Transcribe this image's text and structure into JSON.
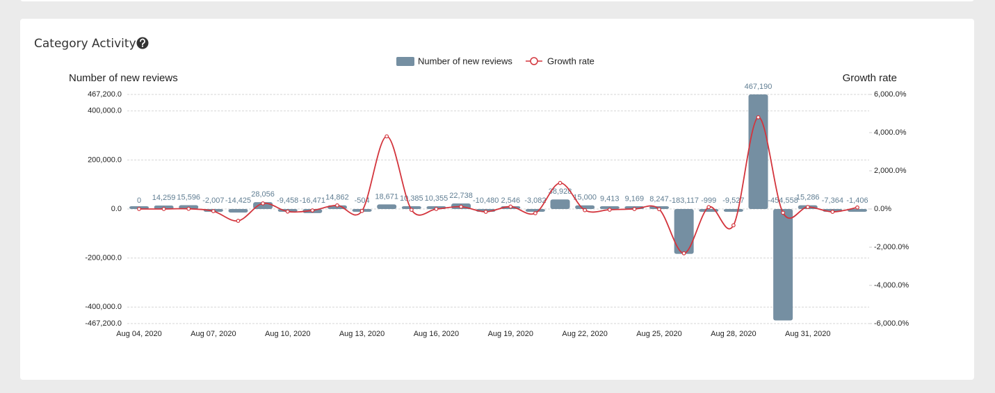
{
  "chart_data": {
    "type": "bar",
    "title": "Category Activity",
    "y_label": "Number of new reviews",
    "y2_label": "Growth rate",
    "legend": "top",
    "grid": true,
    "categories": [
      "Aug 04, 2020",
      null,
      null,
      "Aug 07, 2020",
      null,
      null,
      "Aug 10, 2020",
      null,
      null,
      "Aug 13, 2020",
      null,
      null,
      "Aug 16, 2020",
      null,
      null,
      "Aug 19, 2020",
      null,
      null,
      "Aug 22, 2020",
      null,
      null,
      "Aug 25, 2020",
      null,
      null,
      "Aug 28, 2020",
      null,
      null,
      "Aug 31, 2020",
      null,
      null
    ],
    "ylim": [
      -467200,
      467200
    ],
    "yticks": [
      {
        "value": -467200,
        "label": "-467,200.0"
      },
      {
        "value": -400000,
        "label": "-400,000.0"
      },
      {
        "value": -200000,
        "label": "-200,000.0"
      },
      {
        "value": 0,
        "label": "0.0"
      },
      {
        "value": 200000,
        "label": "200,000.0"
      },
      {
        "value": 400000,
        "label": "400,000.0"
      },
      {
        "value": 467200,
        "label": "467,200.0"
      }
    ],
    "y2lim": [
      -6000,
      6000
    ],
    "y2ticks": [
      {
        "value": -6000,
        "label": "-6,000.0%"
      },
      {
        "value": -4000,
        "label": "-4,000.0%"
      },
      {
        "value": -2000,
        "label": "-2,000.0%"
      },
      {
        "value": 0,
        "label": "0.0%"
      },
      {
        "value": 2000,
        "label": "2,000.0%"
      },
      {
        "value": 4000,
        "label": "4,000.0%"
      },
      {
        "value": 6000,
        "label": "6,000.0%"
      }
    ],
    "series": [
      {
        "name": "Number of new reviews",
        "type": "bar",
        "color": "#758fa2",
        "values": [
          0,
          14259,
          15596,
          -2007,
          -14425,
          28056,
          -9458,
          -16471,
          14862,
          -504,
          18671,
          10385,
          10355,
          22738,
          -10480,
          2546,
          -3082,
          38928,
          15000,
          9413,
          9169,
          8247,
          -183117,
          -999,
          -9527,
          467190,
          -454558,
          15286,
          -7364,
          -1406
        ],
        "value_labels": [
          "0",
          "14,259",
          "15,596",
          "-2,007",
          "-14,425",
          "28,056",
          "-9,458",
          "-16,471",
          "14,862",
          "-504",
          "18,671",
          "10,385",
          "10,355",
          "22,738",
          "-10,480",
          "2,546",
          "-3,082",
          "38,928",
          "15,000",
          "9,413",
          "9,169",
          "8,247",
          "-183,117",
          "-999",
          "-9,527",
          "467,190",
          "-454,558",
          "15,286",
          "-7,364",
          "-1,406"
        ]
      },
      {
        "name": "Growth rate",
        "type": "line",
        "axis": "y2",
        "color": "#d3343c",
        "values": [
          0,
          0,
          9.4,
          -112.9,
          -618.7,
          294.5,
          -133.7,
          -74.1,
          190.2,
          -103.4,
          3804.6,
          -44.4,
          -0.3,
          119.6,
          -146.1,
          124.3,
          -221.1,
          1363.1,
          -61.5,
          -37.2,
          -2.6,
          -10.1,
          -2320.4,
          99.5,
          -853.7,
          4803.8,
          -197.3,
          103.4,
          -148.2,
          80.9
        ]
      }
    ]
  }
}
